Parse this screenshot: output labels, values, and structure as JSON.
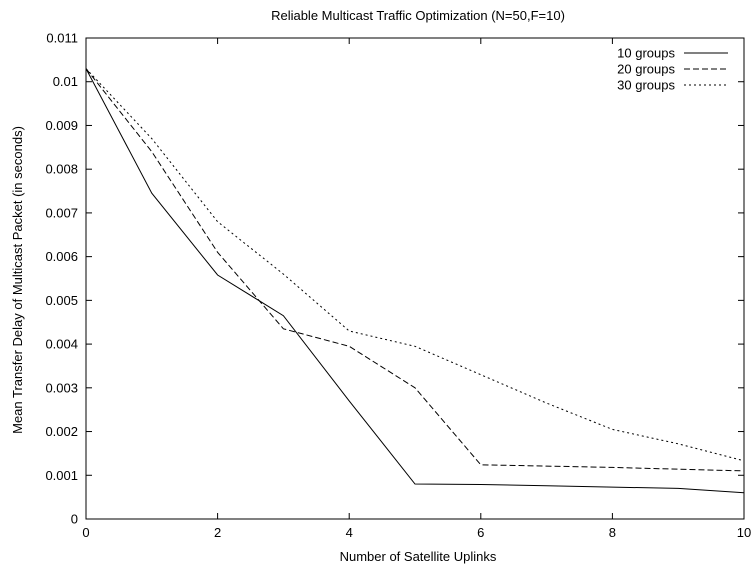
{
  "chart_data": {
    "type": "line",
    "title": "Reliable Multicast Traffic Optimization (N=50,F=10)",
    "xlabel": "Number of Satellite Uplinks",
    "ylabel": "Mean Transfer Delay of Multicast Packet (in seconds)",
    "xlim": [
      0,
      10
    ],
    "ylim": [
      0,
      0.011
    ],
    "xticks": [
      0,
      2,
      4,
      6,
      8,
      10
    ],
    "yticks": [
      0,
      0.001,
      0.002,
      0.003,
      0.004,
      0.005,
      0.006,
      0.007,
      0.008,
      0.009,
      0.01,
      0.011
    ],
    "xtick_labels": [
      "0",
      "2",
      "4",
      "6",
      "8",
      "10"
    ],
    "ytick_labels": [
      "0",
      "0.001",
      "0.002",
      "0.003",
      "0.004",
      "0.005",
      "0.006",
      "0.007",
      "0.008",
      "0.009",
      "0.01",
      "0.011"
    ],
    "grid": false,
    "legend_position": "top-right",
    "series": [
      {
        "name": "10 groups",
        "style": "solid",
        "x": [
          0,
          1,
          2,
          3,
          4,
          5,
          6,
          7,
          8,
          9,
          10
        ],
        "y": [
          0.0103,
          0.00745,
          0.00558,
          0.00465,
          0.0027,
          0.0008,
          0.00079,
          0.00076,
          0.00073,
          0.0007,
          0.0006
        ]
      },
      {
        "name": "20 groups",
        "style": "dashed",
        "x": [
          0,
          1,
          2,
          3,
          4,
          5,
          6,
          7,
          8,
          9,
          10
        ],
        "y": [
          0.0103,
          0.0084,
          0.0061,
          0.00435,
          0.00395,
          0.003,
          0.00124,
          0.00121,
          0.00118,
          0.00114,
          0.0011
        ]
      },
      {
        "name": "30 groups",
        "style": "dotted",
        "x": [
          0,
          1,
          2,
          3,
          4,
          5,
          6,
          7,
          8,
          9,
          10
        ],
        "y": [
          0.0103,
          0.0087,
          0.0068,
          0.0056,
          0.0043,
          0.00395,
          0.0033,
          0.00265,
          0.00205,
          0.00172,
          0.00133
        ]
      }
    ]
  }
}
